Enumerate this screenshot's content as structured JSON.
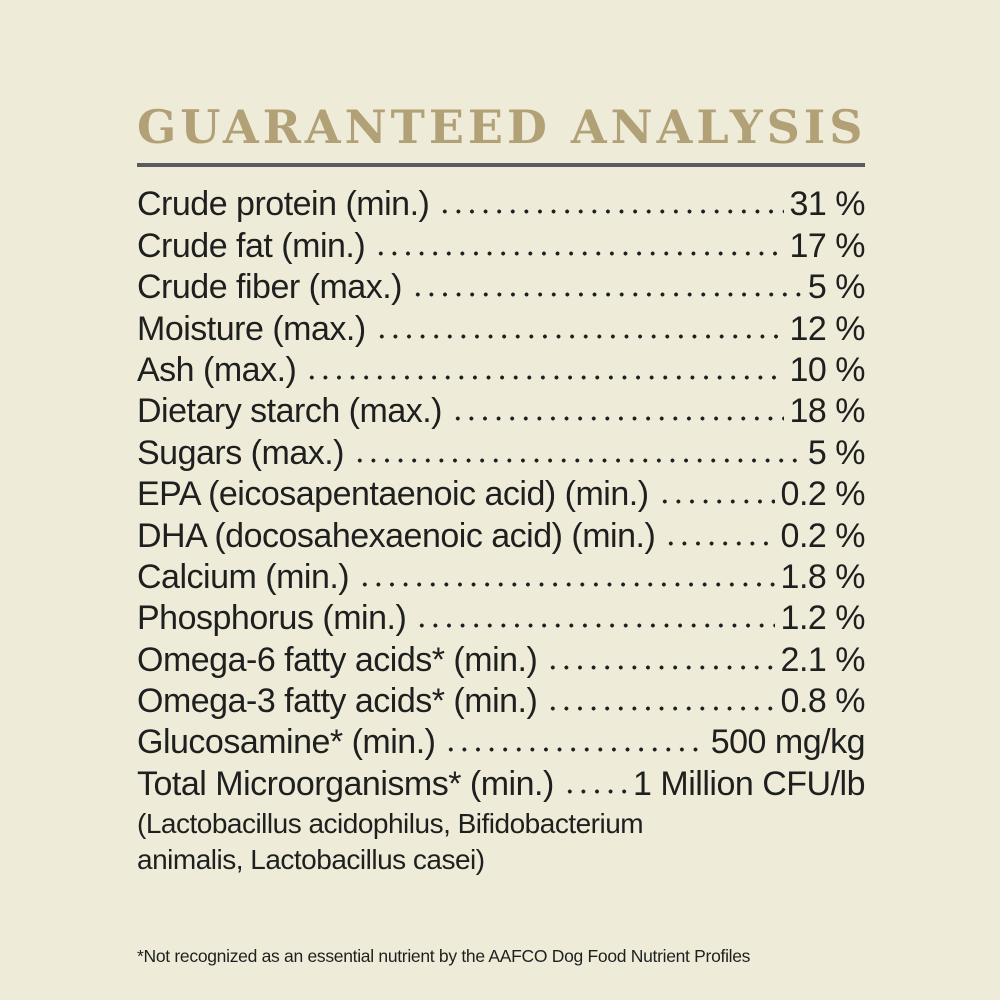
{
  "colors": {
    "background": "#eeecd8",
    "title_gold": "#b2a077",
    "rule_gray": "#5a5b5d",
    "text_ink": "#1f1f1f"
  },
  "title": "GUARANTEED ANALYSIS",
  "analysis": {
    "rows": [
      {
        "label": "Crude protein (min.)",
        "value": "31 %"
      },
      {
        "label": "Crude fat (min.)",
        "value": "17 %"
      },
      {
        "label": "Crude fiber (max.)",
        "value": "5 %"
      },
      {
        "label": "Moisture (max.)",
        "value": "12 %"
      },
      {
        "label": "Ash (max.)",
        "value": "10 %"
      },
      {
        "label": "Dietary starch (max.)",
        "value": "18 %"
      },
      {
        "label": "Sugars (max.)",
        "value": "5 %"
      },
      {
        "label": "EPA (eicosapentaenoic acid) (min.)",
        "value": "0.2 %"
      },
      {
        "label": "DHA (docosahexaenoic acid) (min.)",
        "value": "0.2 %"
      },
      {
        "label": "Calcium (min.)",
        "value": "1.8 %"
      },
      {
        "label": "Phosphorus (min.)",
        "value": "1.2 %"
      },
      {
        "label": "Omega-6 fatty acids* (min.)",
        "value": "2.1 %"
      },
      {
        "label": "Omega-3 fatty acids* (min.)",
        "value": "0.8 %"
      },
      {
        "label": "Glucosamine* (min.)",
        "value": "500 mg/kg"
      },
      {
        "label": "Total Microorganisms* (min.)",
        "value": "1 Million CFU/lb"
      }
    ],
    "microorganism_note_line1": "(Lactobacillus acidophilus, Bifidobacterium",
    "microorganism_note_line2": "animalis, Lactobacillus casei)"
  },
  "footnote": "*Not recognized as an essential nutrient by the AAFCO Dog Food Nutrient Profiles"
}
